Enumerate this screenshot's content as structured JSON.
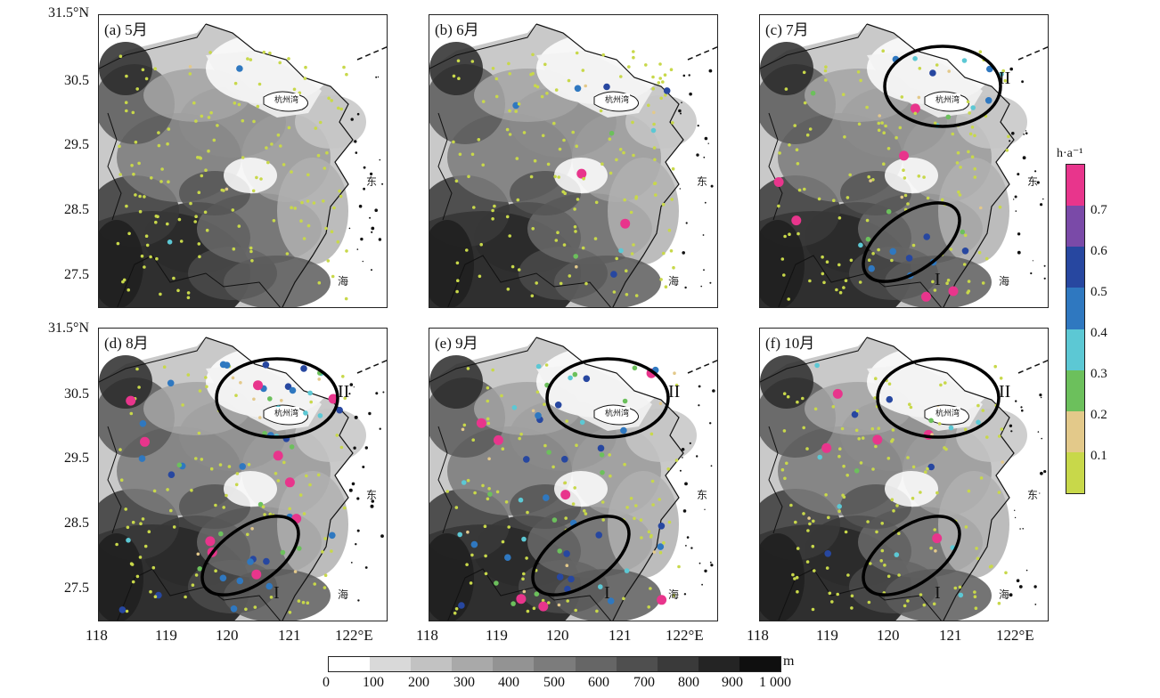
{
  "figure": {
    "y_ticks": [
      {
        "row": 0,
        "labels": [
          "31.5°N",
          "30.5",
          "29.5",
          "28.5",
          "27.5"
        ]
      },
      {
        "row": 1,
        "labels": [
          "31.5°N",
          "30.5",
          "29.5",
          "28.5",
          "27.5"
        ]
      }
    ],
    "x_tick_labels": [
      "118",
      "119",
      "120",
      "121",
      "122°E"
    ],
    "panels": [
      {
        "label": "(a) 5月",
        "sea": [
          "东",
          "海"
        ],
        "bay": "杭州湾",
        "rings": []
      },
      {
        "label": "(b) 6月",
        "sea": [
          "东",
          "海"
        ],
        "bay": "杭州湾",
        "rings": []
      },
      {
        "label": "(c) 7月",
        "sea": [
          "东",
          "海"
        ],
        "bay": "杭州湾",
        "rings": [
          "II",
          "I"
        ]
      },
      {
        "label": "(d) 8月",
        "sea": [
          "东",
          "海"
        ],
        "bay": "杭州湾",
        "rings": [
          "II",
          "I"
        ]
      },
      {
        "label": "(e) 9月",
        "sea": [
          "东",
          "海"
        ],
        "bay": "杭州湾",
        "rings": [
          "II",
          "I"
        ]
      },
      {
        "label": "(f) 10月",
        "sea": [
          "东",
          "海"
        ],
        "bay": "杭州湾",
        "rings": [
          "II",
          "I"
        ]
      }
    ],
    "point_colorbar": {
      "unit": "h·a⁻¹",
      "tick_labels": [
        "0.7",
        "0.6",
        "0.5",
        "0.4",
        "0.3",
        "0.2",
        "0.1"
      ],
      "colors": [
        "#c8d84a",
        "#e3c98a",
        "#6cc05c",
        "#5cc8d4",
        "#2f78c0",
        "#2747a0",
        "#7a4aa8",
        "#e8358c"
      ]
    },
    "elevation_colorbar": {
      "unit": "m",
      "tick_labels": [
        "0",
        "100",
        "200",
        "300",
        "400",
        "500",
        "600",
        "700",
        "800",
        "900",
        "1 000"
      ],
      "colors": [
        "#ffffff",
        "#d9d9d9",
        "#c2c2c2",
        "#a9a9a9",
        "#939393",
        "#7c7c7c",
        "#666666",
        "#4f4f4f",
        "#3a3a3a",
        "#242424",
        "#0f0f0f"
      ]
    }
  }
}
